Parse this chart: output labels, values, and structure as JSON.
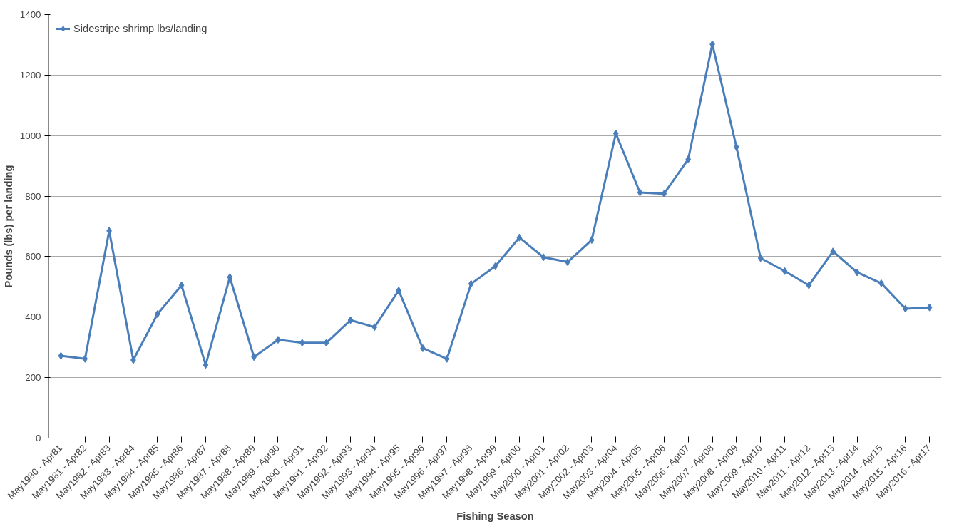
{
  "chart_data": {
    "type": "line",
    "xlabel": "Fishing Season",
    "ylabel": "Pounds (lbs) per landing",
    "categories": [
      "May1980 - Apr81",
      "May1981 - Apr82",
      "May1982 - Apr83",
      "May1983 - Apr84",
      "May1984 - Apr85",
      "May1985 - Apr86",
      "May1986 - Apr87",
      "May1987 - Apr88",
      "May1988 - Apr89",
      "May1989 - Apr90",
      "May1990 - Apr91",
      "May1991 - Apr92",
      "May1992 - Apr93",
      "May1993 - Apr94",
      "May1994 - Apr95",
      "May1995 - Apr96",
      "May1996 - Apr97",
      "May1997 - Apr98",
      "May1998 - Apr99",
      "May1999 - Apr00",
      "May2000 - Apr01",
      "May2001 - Apr02",
      "May2002 - Apr03",
      "May2003 - Apr04",
      "May2004 - Apr05",
      "May2005 - Apr06",
      "May2006 - Apr07",
      "May2007 - Apr08",
      "May2008 - Apr09",
      "May2009 - Apr10",
      "May2010 - Apr11",
      "May2011 - Apr12",
      "May2012 - Apr13",
      "May2013 - Apr14",
      "May2014 - Apr15",
      "May2015 - Apr16",
      "May2016 - Apr17"
    ],
    "series": [
      {
        "name": "Sidestripe shrimp lbs/landing",
        "color": "#4a7ebb",
        "values": [
          272,
          262,
          685,
          258,
          410,
          505,
          242,
          532,
          268,
          325,
          315,
          315,
          390,
          367,
          488,
          297,
          262,
          510,
          568,
          663,
          598,
          582,
          655,
          1007,
          812,
          808,
          922,
          1302,
          962,
          595,
          552,
          505,
          617,
          548,
          512,
          428,
          432
        ]
      }
    ],
    "ylim": [
      0,
      1400
    ],
    "yticks": [
      0,
      200,
      400,
      600,
      800,
      1000,
      1200,
      1400
    ],
    "grid": "y",
    "legend": "top left",
    "marker": "diamond",
    "line_style": "solid"
  }
}
